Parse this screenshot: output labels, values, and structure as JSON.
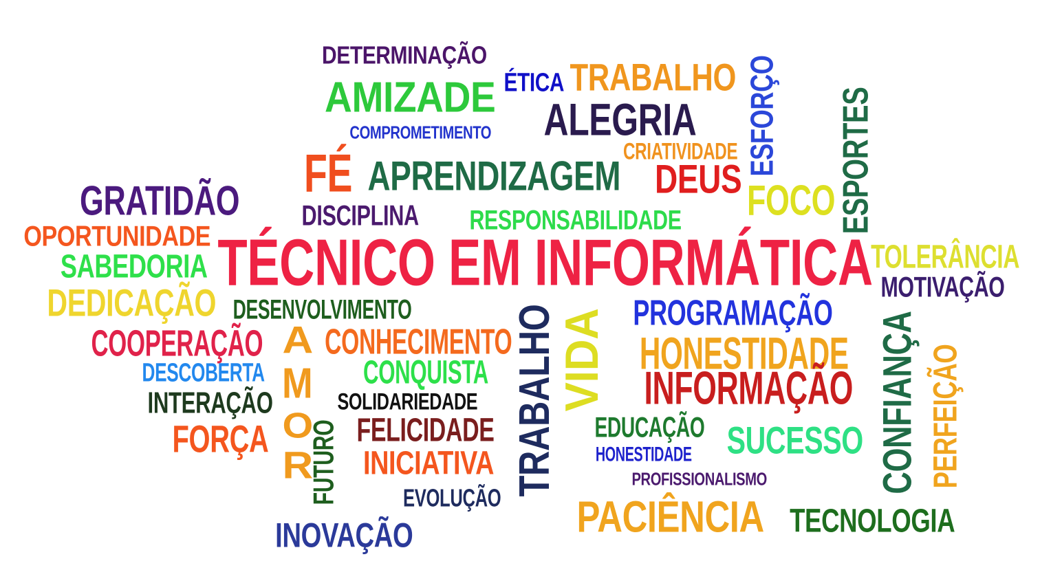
{
  "words": [
    {
      "text": "DETERMINAÇÃO",
      "color": "#4B1569"
    },
    {
      "text": "ÉTICA",
      "color": "#1010C8"
    },
    {
      "text": "TRABALHO",
      "color": "#F0961E"
    },
    {
      "text": "ESFORÇO",
      "color": "#2B47D9"
    },
    {
      "text": "AMIZADE",
      "color": "#2DC93B"
    },
    {
      "text": "ALEGRIA",
      "color": "#2A1B4E"
    },
    {
      "text": "COMPROMETIMENTO",
      "color": "#2233CC"
    },
    {
      "text": "ESPORTES",
      "color": "#1F6B46"
    },
    {
      "text": "CRIATIVIDADE",
      "color": "#F0921E"
    },
    {
      "text": "FÉ",
      "color": "#F04E1E"
    },
    {
      "text": "APRENDIZAGEM",
      "color": "#1F6B46"
    },
    {
      "text": "DEUS",
      "color": "#E01E1E"
    },
    {
      "text": "GRATIDÃO",
      "color": "#4B1A7E"
    },
    {
      "text": "FOCO",
      "color": "#DDE020"
    },
    {
      "text": "DISCIPLINA",
      "color": "#4B1A6E"
    },
    {
      "text": "RESPONSABILIDADE",
      "color": "#2DDB4B"
    },
    {
      "text": "OPORTUNIDADE",
      "color": "#F4561E"
    },
    {
      "text": "TÉCNICO EM INFORMÁTICA",
      "color": "#EE2244"
    },
    {
      "text": "TOLERÂNCIA",
      "color": "#DDDF30"
    },
    {
      "text": "SABEDORIA",
      "color": "#2EE04A"
    },
    {
      "text": "MOTIVAÇÃO",
      "color": "#3B1E6E"
    },
    {
      "text": "DEDICAÇÃO",
      "color": "#EFD52E"
    },
    {
      "text": "DESENVOLVIMENTO",
      "color": "#1E5E1E"
    },
    {
      "text": "PROGRAMAÇÃO",
      "color": "#2233DD"
    },
    {
      "text": "TRABALHO",
      "color": "#1E2B5E"
    },
    {
      "text": "VIDA",
      "color": "#DDDD22"
    },
    {
      "text": "A",
      "color": "#F09A1E"
    },
    {
      "text": "COOPERAÇÃO",
      "color": "#E0224A"
    },
    {
      "text": "CONHECIMENTO",
      "color": "#F46A1E"
    },
    {
      "text": "HONESTIDADE",
      "color": "#F0A41E"
    },
    {
      "text": "CONFIANÇA",
      "color": "#1F6B46"
    },
    {
      "text": "DESCOBERTA",
      "color": "#2288EE"
    },
    {
      "text": "CONQUISTA",
      "color": "#2DE04A"
    },
    {
      "text": "PERFEIÇÃO",
      "color": "#F0A41E"
    },
    {
      "text": "M",
      "color": "#F09A1E"
    },
    {
      "text": "INFORMAÇÃO",
      "color": "#C81E1E"
    },
    {
      "text": "INTERAÇÃO",
      "color": "#1E3A1E"
    },
    {
      "text": "SOLIDARIEDADE",
      "color": "#111111"
    },
    {
      "text": "O",
      "color": "#F09A1E"
    },
    {
      "text": "FUTURO",
      "color": "#1E5E1E"
    },
    {
      "text": "FELICIDADE",
      "color": "#7A1E1E"
    },
    {
      "text": "EDUCAÇÃO",
      "color": "#1E7A2E"
    },
    {
      "text": "SUCESSO",
      "color": "#2EE084"
    },
    {
      "text": "FORÇA",
      "color": "#F4561E"
    },
    {
      "text": "R",
      "color": "#F09A1E"
    },
    {
      "text": "HONESTIDADE",
      "color": "#1E22CC"
    },
    {
      "text": "INICIATIVA",
      "color": "#F4561E"
    },
    {
      "text": "PROFISSIONALISMO",
      "color": "#4B1A6E"
    },
    {
      "text": "EVOLUÇÃO",
      "color": "#1E2B5E"
    },
    {
      "text": "PACIÊNCIA",
      "color": "#F0A41E"
    },
    {
      "text": "TECNOLOGIA",
      "color": "#1E6E1E"
    },
    {
      "text": "INOVAÇÃO",
      "color": "#2B3A9A"
    }
  ]
}
